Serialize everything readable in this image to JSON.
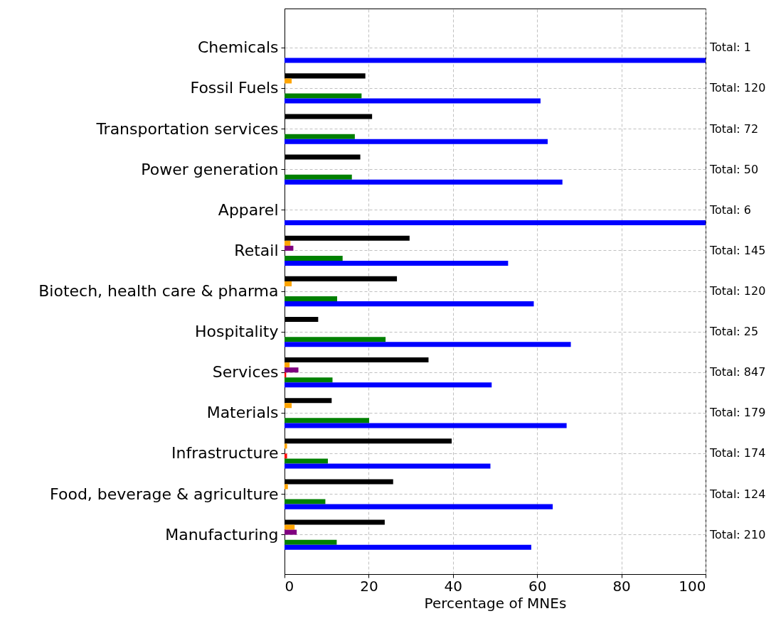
{
  "chart_data": {
    "type": "bar",
    "orientation": "horizontal",
    "xlabel": "Percentage of MNEs",
    "categories": [
      "Chemicals",
      "Fossil Fuels",
      "Transportation services",
      "Power generation",
      "Apparel",
      "Retail",
      "Biotech, health care & pharma",
      "Hospitality",
      "Services",
      "Materials",
      "Infrastructure",
      "Food, beverage & agriculture",
      "Manufacturing"
    ],
    "series": [
      {
        "color": "#000000",
        "values": [
          null,
          19.2,
          20.8,
          18,
          null,
          29.7,
          26.7,
          8,
          34.2,
          11.2,
          39.7,
          25.8,
          23.8
        ]
      },
      {
        "color": "#ffa500",
        "values": [
          null,
          1.7,
          null,
          null,
          null,
          1.4,
          1.7,
          null,
          1.2,
          1.7,
          0.6,
          0.8,
          2.4
        ]
      },
      {
        "color": "#800080",
        "values": [
          null,
          null,
          null,
          null,
          null,
          2.1,
          null,
          null,
          3.3,
          null,
          null,
          null,
          2.9
        ]
      },
      {
        "color": "#ff0000",
        "values": [
          null,
          null,
          null,
          null,
          null,
          null,
          null,
          null,
          0.4,
          null,
          0.6,
          null,
          null
        ]
      },
      {
        "color": "#008000",
        "values": [
          null,
          18.3,
          16.7,
          16,
          null,
          13.8,
          12.5,
          24,
          11.4,
          20.1,
          10.3,
          9.7,
          12.4
        ]
      },
      {
        "color": "#0000ff",
        "values": [
          100,
          60.8,
          62.5,
          66,
          100,
          53.1,
          59.2,
          68,
          49.2,
          67,
          48.9,
          63.7,
          58.6
        ]
      }
    ],
    "xlim": [
      0,
      100
    ],
    "xticks": [
      0,
      20,
      40,
      60,
      80,
      100
    ],
    "grid": true,
    "legend": false,
    "annotations": [
      "Total: 1",
      "Total: 120",
      "Total: 72",
      "Total: 50",
      "Total: 6",
      "Total: 145",
      "Total: 120",
      "Total: 25",
      "Total: 847",
      "Total: 179",
      "Total: 174",
      "Total: 124",
      "Total: 210"
    ]
  }
}
